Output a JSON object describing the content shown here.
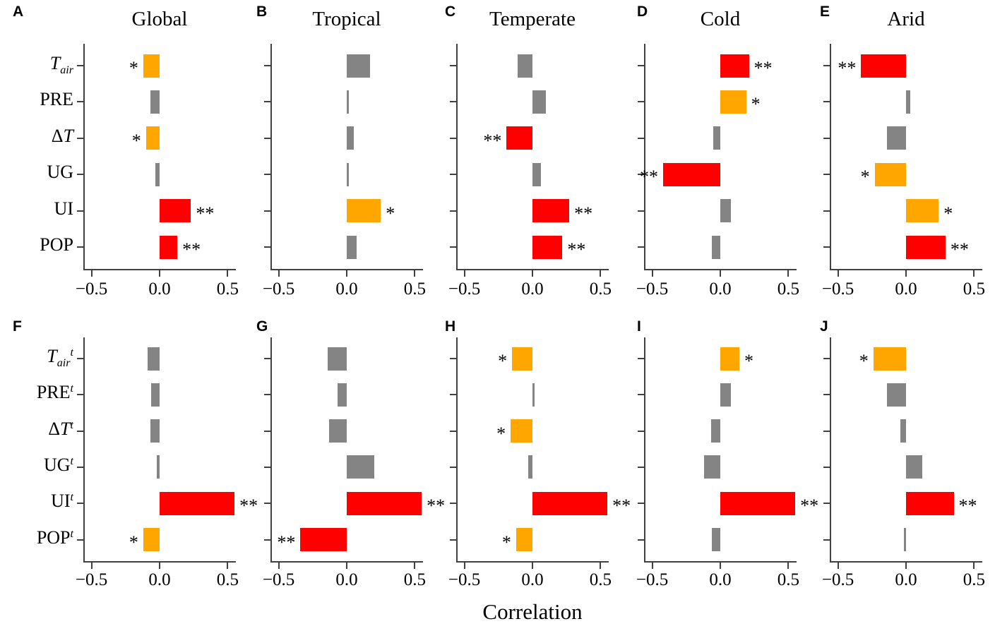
{
  "figure": {
    "xlabel": "Correlation",
    "xtick_labels": [
      "−0.5",
      "0.0",
      "0.5"
    ],
    "colors": {
      "red": "#fe0000",
      "orange": "#ffa601",
      "gray": "#848484",
      "axis": "#404040",
      "text": "#000000",
      "background": "#ffffff"
    }
  },
  "chart_data": {
    "type": "bar",
    "orientation": "horizontal",
    "xlabel": "Correlation",
    "xlim": [
      -0.56,
      0.56
    ],
    "xticks": [
      -0.5,
      0.0,
      0.5
    ],
    "grid": false,
    "legend": "none",
    "significance_key": [
      "*",
      "**"
    ],
    "panels": [
      {
        "letter": "A",
        "title": "Global",
        "categories": [
          "T_air",
          "PRE",
          "ΔT",
          "UG",
          "UI",
          "POP"
        ],
        "values": [
          -0.12,
          -0.07,
          -0.1,
          -0.03,
          0.23,
          0.13
        ],
        "colors": [
          "orange",
          "gray",
          "orange",
          "gray",
          "red",
          "red"
        ],
        "significance": [
          "*",
          "",
          "*",
          "",
          "**",
          "**"
        ]
      },
      {
        "letter": "B",
        "title": "Tropical",
        "categories": [
          "T_air",
          "PRE",
          "ΔT",
          "UG",
          "UI",
          "POP"
        ],
        "values": [
          0.17,
          0.01,
          0.05,
          0.01,
          0.25,
          0.07
        ],
        "colors": [
          "gray",
          "gray",
          "gray",
          "gray",
          "orange",
          "gray"
        ],
        "significance": [
          "",
          "",
          "",
          "",
          "*",
          ""
        ]
      },
      {
        "letter": "C",
        "title": "Temperate",
        "categories": [
          "T_air",
          "PRE",
          "ΔT",
          "UG",
          "UI",
          "POP"
        ],
        "values": [
          -0.11,
          0.1,
          -0.19,
          0.06,
          0.27,
          0.22
        ],
        "colors": [
          "gray",
          "gray",
          "red",
          "gray",
          "red",
          "red"
        ],
        "significance": [
          "",
          "",
          "**",
          "",
          "**",
          "**"
        ]
      },
      {
        "letter": "D",
        "title": "Cold",
        "categories": [
          "T_air",
          "PRE",
          "ΔT",
          "UG",
          "UI",
          "POP"
        ],
        "values": [
          0.21,
          0.19,
          -0.05,
          -0.42,
          0.08,
          -0.06
        ],
        "colors": [
          "red",
          "orange",
          "gray",
          "red",
          "gray",
          "gray"
        ],
        "significance": [
          "**",
          "*",
          "",
          "**",
          "",
          ""
        ]
      },
      {
        "letter": "E",
        "title": "Arid",
        "categories": [
          "T_air",
          "PRE",
          "ΔT",
          "UG",
          "UI",
          "POP"
        ],
        "values": [
          -0.33,
          0.03,
          -0.14,
          -0.23,
          0.24,
          0.29
        ],
        "colors": [
          "red",
          "gray",
          "gray",
          "orange",
          "orange",
          "red"
        ],
        "significance": [
          "**",
          "",
          "",
          "*",
          "*",
          "**"
        ]
      },
      {
        "letter": "F",
        "title": "",
        "categories": [
          "T_air^t",
          "PRE^t",
          "ΔT^t",
          "UG^t",
          "UI^t",
          "POP^t"
        ],
        "values": [
          -0.09,
          -0.06,
          -0.07,
          -0.02,
          0.55,
          -0.12
        ],
        "colors": [
          "gray",
          "gray",
          "gray",
          "gray",
          "red",
          "orange"
        ],
        "significance": [
          "",
          "",
          "",
          "",
          "**",
          "*"
        ]
      },
      {
        "letter": "G",
        "title": "",
        "categories": [
          "T_air^t",
          "PRE^t",
          "ΔT^t",
          "UG^t",
          "UI^t",
          "POP^t"
        ],
        "values": [
          -0.14,
          -0.07,
          -0.13,
          0.2,
          0.55,
          -0.34
        ],
        "colors": [
          "gray",
          "gray",
          "gray",
          "gray",
          "red",
          "red"
        ],
        "significance": [
          "",
          "",
          "",
          "",
          "**",
          "**"
        ]
      },
      {
        "letter": "H",
        "title": "",
        "categories": [
          "T_air^t",
          "PRE^t",
          "ΔT^t",
          "UG^t",
          "UI^t",
          "POP^t"
        ],
        "values": [
          -0.15,
          0.01,
          -0.16,
          -0.03,
          0.55,
          -0.12
        ],
        "colors": [
          "orange",
          "gray",
          "orange",
          "gray",
          "red",
          "orange"
        ],
        "significance": [
          "*",
          "",
          "*",
          "",
          "**",
          "*"
        ]
      },
      {
        "letter": "I",
        "title": "",
        "categories": [
          "T_air^t",
          "PRE^t",
          "ΔT^t",
          "UG^t",
          "UI^t",
          "POP^t"
        ],
        "values": [
          0.14,
          0.08,
          -0.07,
          -0.12,
          0.55,
          -0.06
        ],
        "colors": [
          "orange",
          "gray",
          "gray",
          "gray",
          "red",
          "gray"
        ],
        "significance": [
          "*",
          "",
          "",
          "",
          "**",
          ""
        ]
      },
      {
        "letter": "J",
        "title": "",
        "categories": [
          "T_air^t",
          "PRE^t",
          "ΔT^t",
          "UG^t",
          "UI^t",
          "POP^t"
        ],
        "values": [
          -0.24,
          -0.14,
          -0.04,
          0.12,
          0.35,
          -0.01
        ],
        "colors": [
          "orange",
          "gray",
          "gray",
          "gray",
          "red",
          "gray"
        ],
        "significance": [
          "*",
          "",
          "",
          "",
          "**",
          ""
        ]
      }
    ]
  }
}
